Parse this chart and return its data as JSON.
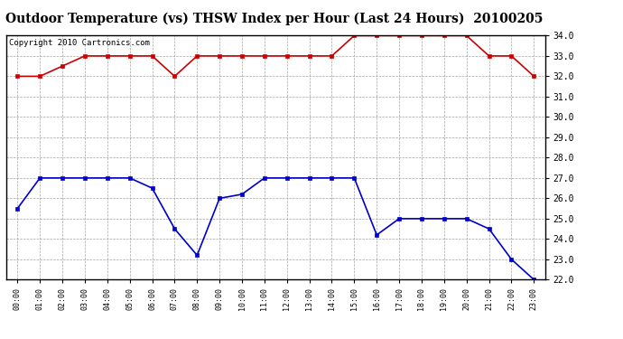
{
  "title": "Outdoor Temperature (vs) THSW Index per Hour (Last 24 Hours)  20100205",
  "copyright": "Copyright 2010 Cartronics.com",
  "hours": [
    "00:00",
    "01:00",
    "02:00",
    "03:00",
    "04:00",
    "05:00",
    "06:00",
    "07:00",
    "08:00",
    "09:00",
    "10:00",
    "11:00",
    "12:00",
    "13:00",
    "14:00",
    "15:00",
    "16:00",
    "17:00",
    "18:00",
    "19:00",
    "20:00",
    "21:00",
    "22:00",
    "23:00"
  ],
  "red_data": [
    32.0,
    32.0,
    32.5,
    33.0,
    33.0,
    33.0,
    33.0,
    32.0,
    33.0,
    33.0,
    33.0,
    33.0,
    33.0,
    33.0,
    33.0,
    34.0,
    34.0,
    34.0,
    34.0,
    34.0,
    34.0,
    33.0,
    33.0,
    32.0
  ],
  "blue_data": [
    25.5,
    27.0,
    27.0,
    27.0,
    27.0,
    27.0,
    26.5,
    24.5,
    23.2,
    26.0,
    26.2,
    27.0,
    27.0,
    27.0,
    27.0,
    27.0,
    24.2,
    25.0,
    25.0,
    25.0,
    25.0,
    24.5,
    23.0,
    22.0
  ],
  "ylim_min": 22.0,
  "ylim_max": 34.0,
  "yticks": [
    22.0,
    23.0,
    24.0,
    25.0,
    26.0,
    27.0,
    28.0,
    29.0,
    30.0,
    31.0,
    32.0,
    33.0,
    34.0
  ],
  "red_color": "#cc0000",
  "blue_color": "#0000cc",
  "bg_color": "#ffffff",
  "grid_color": "#999999",
  "title_fontsize": 10,
  "copyright_fontsize": 6.5,
  "tick_fontsize": 7,
  "xtick_fontsize": 6
}
